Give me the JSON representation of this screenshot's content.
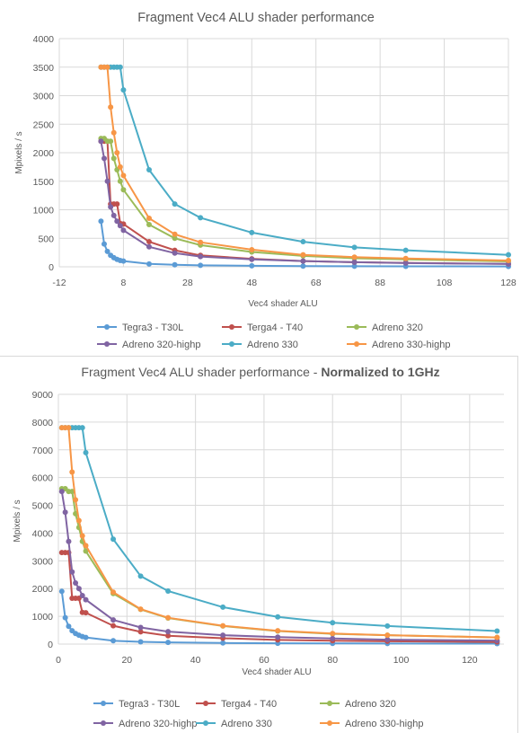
{
  "chart_data": [
    {
      "type": "scatter",
      "title": "Fragment Vec4 ALU shader performance",
      "title_bold": "",
      "xlabel": "Vec4 shader ALU",
      "ylabel": "Mpixels / s",
      "xlim": [
        -12,
        128
      ],
      "ylim": [
        0,
        4000
      ],
      "xticks": [
        -12,
        8,
        28,
        48,
        68,
        88,
        108,
        128
      ],
      "yticks": [
        0,
        500,
        1000,
        1500,
        2000,
        2500,
        3000,
        3500,
        4000
      ],
      "grid": true,
      "legend_position": "bottom",
      "series": [
        {
          "name": "Tegra3 - T30L",
          "color": "#5b9bd5",
          "x": [
            1,
            2,
            3,
            4,
            5,
            6,
            7,
            8,
            16,
            24,
            32,
            48,
            64,
            80,
            96,
            128
          ],
          "y": [
            800,
            400,
            270,
            200,
            160,
            130,
            110,
            100,
            50,
            35,
            25,
            18,
            12,
            10,
            8,
            6
          ]
        },
        {
          "name": "Terga4 - T40",
          "color": "#c0504d",
          "x": [
            1,
            2,
            3,
            4,
            5,
            6,
            7,
            8,
            16,
            24,
            32,
            48,
            64,
            80,
            96,
            128
          ],
          "y": [
            2200,
            2200,
            2200,
            1100,
            1100,
            1100,
            760,
            750,
            440,
            290,
            200,
            140,
            100,
            80,
            70,
            50
          ]
        },
        {
          "name": "Adreno 320",
          "color": "#9bbb59",
          "x": [
            1,
            2,
            3,
            4,
            5,
            6,
            7,
            8,
            16,
            24,
            32,
            48,
            64,
            80,
            96,
            128
          ],
          "y": [
            2250,
            2250,
            2200,
            2200,
            1900,
            1700,
            1500,
            1350,
            740,
            500,
            380,
            260,
            190,
            150,
            130,
            95
          ]
        },
        {
          "name": "Adreno 320-highp",
          "color": "#8064a2",
          "x": [
            1,
            2,
            3,
            4,
            5,
            6,
            7,
            8,
            16,
            24,
            32,
            48,
            64,
            80,
            96,
            128
          ],
          "y": [
            2200,
            1900,
            1500,
            1050,
            900,
            800,
            720,
            640,
            350,
            240,
            180,
            130,
            100,
            80,
            65,
            50
          ]
        },
        {
          "name": "Adreno 330",
          "color": "#4bacc6",
          "x": [
            1,
            2,
            3,
            4,
            5,
            6,
            7,
            8,
            16,
            24,
            32,
            48,
            64,
            80,
            96,
            128
          ],
          "y": [
            3500,
            3500,
            3500,
            3500,
            3500,
            3500,
            3500,
            3100,
            1700,
            1100,
            860,
            600,
            440,
            340,
            290,
            210
          ]
        },
        {
          "name": "Adreno 330-highp",
          "color": "#f79646",
          "x": [
            1,
            2,
            3,
            4,
            5,
            6,
            7,
            8,
            16,
            24,
            32,
            48,
            64,
            80,
            96,
            128
          ],
          "y": [
            3500,
            3500,
            3500,
            2800,
            2350,
            2000,
            1750,
            1600,
            850,
            570,
            430,
            300,
            210,
            170,
            145,
            110
          ]
        }
      ]
    },
    {
      "type": "scatter",
      "title": "Fragment Vec4 ALU shader performance - ",
      "title_bold": "Normalized to 1GHz",
      "xlabel": "Vec4 shader ALU",
      "ylabel": "Mpixels / s",
      "xlim": [
        0,
        130
      ],
      "ylim": [
        0,
        9000
      ],
      "xticks": [
        0,
        20,
        40,
        60,
        80,
        100,
        120
      ],
      "yticks": [
        0,
        1000,
        2000,
        3000,
        4000,
        5000,
        6000,
        7000,
        8000,
        9000
      ],
      "grid": true,
      "legend_position": "bottom",
      "series": [
        {
          "name": "Tegra3 - T30L",
          "color": "#5b9bd5",
          "x": [
            1,
            2,
            3,
            4,
            5,
            6,
            7,
            8,
            16,
            24,
            32,
            48,
            64,
            80,
            96,
            128
          ],
          "y": [
            1900,
            950,
            640,
            480,
            380,
            320,
            270,
            240,
            120,
            80,
            60,
            40,
            30,
            25,
            20,
            15
          ]
        },
        {
          "name": "Terga4 - T40",
          "color": "#c0504d",
          "x": [
            1,
            2,
            3,
            4,
            5,
            6,
            7,
            8,
            16,
            24,
            32,
            48,
            64,
            80,
            96,
            128
          ],
          "y": [
            3300,
            3300,
            3300,
            1650,
            1650,
            1650,
            1140,
            1130,
            660,
            440,
            300,
            210,
            150,
            120,
            100,
            75
          ]
        },
        {
          "name": "Adreno 320",
          "color": "#9bbb59",
          "x": [
            1,
            2,
            3,
            4,
            5,
            6,
            7,
            8,
            16,
            24,
            32,
            48,
            64,
            80,
            96,
            128
          ],
          "y": [
            5600,
            5600,
            5500,
            5500,
            4700,
            4200,
            3700,
            3350,
            1820,
            1250,
            940,
            650,
            470,
            370,
            320,
            240
          ]
        },
        {
          "name": "Adreno 320-highp",
          "color": "#8064a2",
          "x": [
            1,
            2,
            3,
            4,
            5,
            6,
            7,
            8,
            16,
            24,
            32,
            48,
            64,
            80,
            96,
            128
          ],
          "y": [
            5500,
            4750,
            3700,
            2600,
            2200,
            2000,
            1750,
            1600,
            870,
            600,
            450,
            320,
            250,
            200,
            160,
            125
          ]
        },
        {
          "name": "Adreno 330",
          "color": "#4bacc6",
          "x": [
            1,
            2,
            3,
            4,
            5,
            6,
            7,
            8,
            16,
            24,
            32,
            48,
            64,
            80,
            96,
            128
          ],
          "y": [
            7800,
            7800,
            7800,
            7800,
            7800,
            7800,
            7800,
            6900,
            3780,
            2450,
            1910,
            1330,
            980,
            770,
            650,
            470
          ]
        },
        {
          "name": "Adreno 330-highp",
          "color": "#f79646",
          "x": [
            1,
            2,
            3,
            4,
            5,
            6,
            7,
            8,
            16,
            24,
            32,
            48,
            64,
            80,
            96,
            128
          ],
          "y": [
            7800,
            7800,
            7800,
            6200,
            5200,
            4450,
            3900,
            3550,
            1870,
            1260,
            950,
            660,
            480,
            380,
            320,
            240
          ]
        }
      ]
    }
  ]
}
